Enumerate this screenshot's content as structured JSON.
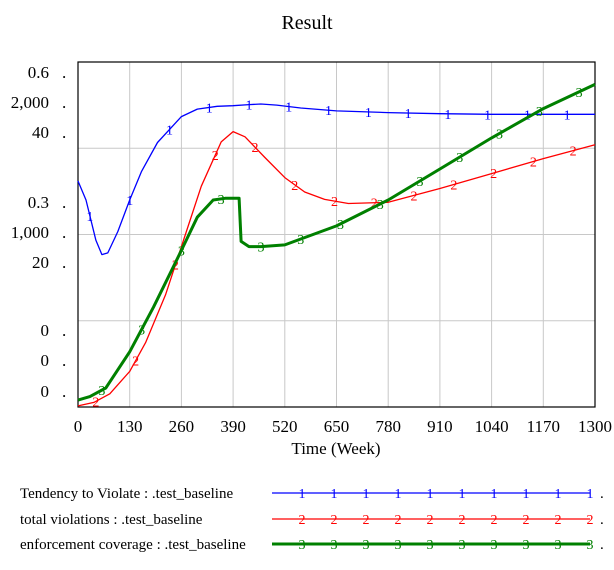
{
  "chart_data": {
    "type": "line",
    "title": "Result",
    "xlabel": "Time (Week)",
    "xlim": [
      0,
      1300
    ],
    "x_ticks": [
      "0",
      "130",
      "260",
      "390",
      "520",
      "650",
      "780",
      "910",
      "1040",
      "1170",
      "1300"
    ],
    "y_tick_rows": [
      {
        "label": "0.6",
        "dot": "."
      },
      {
        "label": "2,000",
        "dot": "."
      },
      {
        "label": "40",
        "dot": "."
      },
      {
        "label": "0.3",
        "dot": "."
      },
      {
        "label": "1,000",
        "dot": "."
      },
      {
        "label": "20",
        "dot": "."
      },
      {
        "label": "0",
        "dot": "."
      },
      {
        "label": "0",
        "dot": "."
      },
      {
        "label": "0",
        "dot": "."
      }
    ],
    "series": [
      {
        "name": "Tendency to Violate : .test_baseline",
        "marker": "1",
        "color": "#0000ff",
        "ylim": [
          0,
          0.6
        ],
        "x": [
          0,
          20,
          45,
          60,
          75,
          100,
          130,
          160,
          200,
          260,
          300,
          350,
          390,
          430,
          460,
          500,
          560,
          650,
          780,
          910,
          1040,
          1170,
          1300
        ],
        "values": [
          0.393,
          0.36,
          0.29,
          0.265,
          0.268,
          0.305,
          0.36,
          0.41,
          0.46,
          0.505,
          0.518,
          0.523,
          0.524,
          0.526,
          0.527,
          0.525,
          0.52,
          0.515,
          0.512,
          0.51,
          0.509,
          0.509,
          0.509
        ]
      },
      {
        "name": "total violations : .test_baseline",
        "marker": "2",
        "color": "#ff0000",
        "ylim": [
          0,
          60
        ],
        "x": [
          0,
          40,
          80,
          130,
          170,
          220,
          270,
          310,
          360,
          390,
          420,
          470,
          520,
          570,
          620,
          680,
          780,
          910,
          1040,
          1170,
          1300
        ],
        "values": [
          0.2,
          0.8,
          2.3,
          6.2,
          11.2,
          19.5,
          30,
          38.4,
          46.1,
          47.9,
          47.0,
          43.4,
          39.9,
          37.4,
          36.1,
          35.4,
          35.6,
          38.0,
          40.6,
          43.2,
          45.6
        ]
      },
      {
        "name": "enforcement coverage : .test_baseline",
        "marker": "3",
        "color": "#008000",
        "ylim": [
          0,
          2000
        ],
        "x": [
          0,
          30,
          70,
          130,
          190,
          250,
          300,
          340,
          370,
          405,
          410,
          430,
          460,
          520,
          650,
          780,
          910,
          1040,
          1170,
          1300
        ],
        "values": [
          40,
          60,
          110,
          320,
          580,
          860,
          1100,
          1200,
          1210,
          1210,
          960,
          930,
          930,
          940,
          1050,
          1200,
          1380,
          1560,
          1730,
          1870
        ]
      }
    ],
    "legend_position": "bottom"
  }
}
